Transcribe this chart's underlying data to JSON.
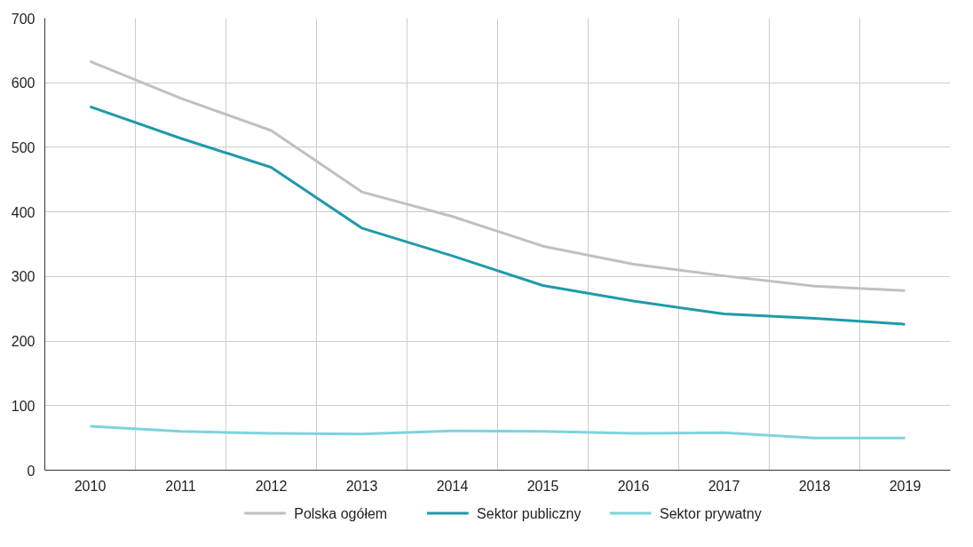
{
  "chart_data": {
    "type": "line",
    "categories": [
      "2010",
      "2011",
      "2012",
      "2013",
      "2014",
      "2015",
      "2016",
      "2017",
      "2018",
      "2019"
    ],
    "series": [
      {
        "name": "Polska ogółem",
        "color": "#c0c0c0",
        "values": [
          633,
          576,
          526,
          431,
          393,
          347,
          319,
          301,
          285,
          278
        ]
      },
      {
        "name": "Sektor publiczny",
        "color": "#1f9aaa",
        "values": [
          563,
          514,
          469,
          375,
          332,
          286,
          262,
          242,
          235,
          226
        ]
      },
      {
        "name": "Sektor prywatny",
        "color": "#7fd3dc",
        "values": [
          68,
          60,
          57,
          56,
          61,
          60,
          57,
          58,
          50,
          50
        ]
      }
    ],
    "ylim": [
      0,
      700
    ],
    "yticks": [
      0,
      100,
      200,
      300,
      400,
      500,
      600,
      700
    ],
    "grid": true,
    "legend": "bottom",
    "marker": "none",
    "line_style": "solid"
  }
}
